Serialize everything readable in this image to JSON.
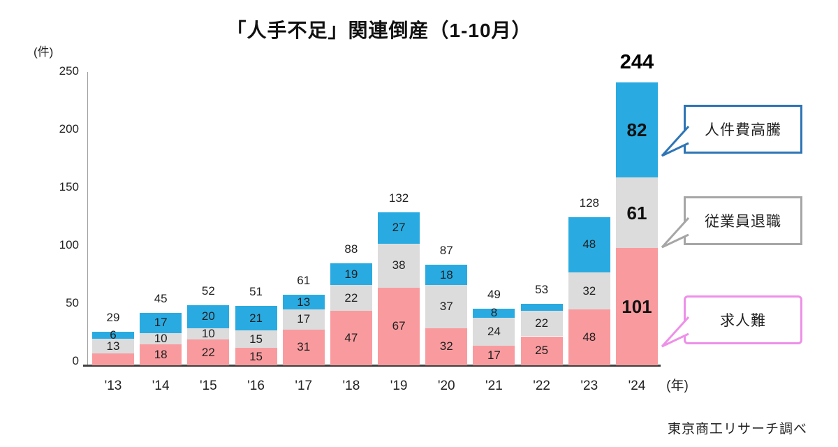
{
  "chart_data": {
    "type": "bar",
    "subtype": "stacked",
    "title": "「人手不足」関連倒産（1-10月）",
    "y_axis_unit": "(件)",
    "x_axis_unit": "(年)",
    "source": "東京商工リサーチ調べ",
    "ylim": [
      0,
      250
    ],
    "yticks": [
      0,
      50,
      100,
      150,
      200,
      250
    ],
    "grid": false,
    "legend_position": "right-callouts",
    "categories": [
      "'13",
      "'14",
      "'15",
      "'16",
      "'17",
      "'18",
      "'19",
      "'20",
      "'21",
      "'22",
      "'23",
      "'24"
    ],
    "totals": [
      29,
      45,
      52,
      51,
      61,
      88,
      132,
      87,
      49,
      53,
      128,
      244
    ],
    "series": [
      {
        "name": "求人難",
        "color": "#F99B9E",
        "values": [
          10,
          18,
          22,
          15,
          31,
          47,
          67,
          32,
          17,
          25,
          48,
          101
        ],
        "labels": [
          "",
          "18",
          "22",
          "15",
          "31",
          "47",
          "67",
          "32",
          "17",
          "25",
          "48",
          "101"
        ]
      },
      {
        "name": "従業員退職",
        "color": "#DCDCDC",
        "values": [
          13,
          10,
          10,
          15,
          17,
          22,
          38,
          37,
          24,
          22,
          32,
          61
        ],
        "labels": [
          "13",
          "10",
          "10",
          "15",
          "17",
          "22",
          "38",
          "37",
          "24",
          "22",
          "32",
          "61"
        ]
      },
      {
        "name": "人件費高騰",
        "color": "#29ABE2",
        "values": [
          6,
          17,
          20,
          21,
          13,
          19,
          27,
          18,
          8,
          6,
          48,
          82
        ],
        "labels": [
          "6",
          "17",
          "20",
          "21",
          "13",
          "19",
          "27",
          "18",
          "8",
          "",
          "48",
          "82"
        ]
      }
    ],
    "callouts": [
      {
        "label": "人件費高騰",
        "border_color": "#2E75B6"
      },
      {
        "label": "従業員退職",
        "border_color": "#A6A6A6"
      },
      {
        "label": "求人難",
        "border_color": "#EE90E9"
      }
    ]
  }
}
